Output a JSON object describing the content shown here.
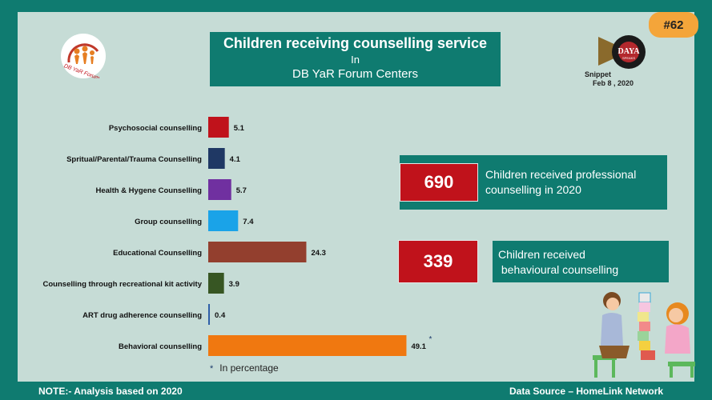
{
  "badge": "#62",
  "title": {
    "line1": "Children receiving counselling service",
    "line2": "In",
    "line3": "DB YaR Forum Centers"
  },
  "snippet": {
    "label": "Snippet",
    "date": "Feb 8 , 2020",
    "logo_text": "DAYA",
    "logo_sub": "SPEAKS"
  },
  "logo": {
    "text": "DB YaR Forum"
  },
  "stats": [
    {
      "value": "690",
      "text_line1": "Children received professional",
      "text_line2": "counselling in 2020"
    },
    {
      "value": "339",
      "text_line1": "Children received",
      "text_line2": " behavioural counselling"
    }
  ],
  "legend": {
    "marker": "*",
    "text": "In percentage"
  },
  "footer": {
    "note": "NOTE:- Analysis based on 2020",
    "source": "Data Source – HomeLink Network"
  },
  "chart_data": {
    "type": "bar",
    "orientation": "horizontal",
    "title": "",
    "categories": [
      "Psychosocial counselling",
      "Spritual/Parental/Trauma Counselling",
      "Health & Hygene Counselling",
      "Group counselling",
      "Educational Counselling",
      "Counselling through recreational kit activity",
      "ART drug adherence counselling",
      "Behavioral counselling"
    ],
    "values": [
      5.1,
      4.1,
      5.7,
      7.4,
      24.3,
      3.9,
      0.4,
      49.1
    ],
    "value_labels": [
      "5.1",
      "4.1",
      "5.7",
      "7.4",
      "24.3",
      "3.9",
      "0.4",
      "49.1"
    ],
    "annotation": "*",
    "colors": [
      "#c0121b",
      "#1f3864",
      "#7030a0",
      "#1aa3e8",
      "#933f2e",
      "#375623",
      "#2e5fa8",
      "#f07810"
    ],
    "xlim": [
      0,
      50
    ],
    "grid": false
  }
}
